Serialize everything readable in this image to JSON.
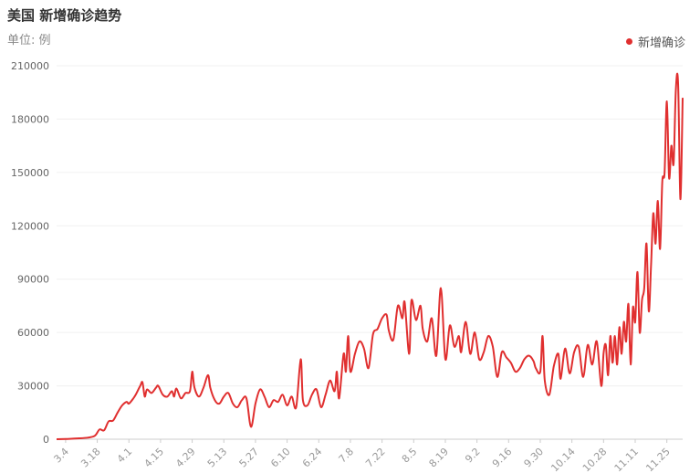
{
  "header": {
    "title": "美国 新增确诊趋势",
    "unit": "单位: 例"
  },
  "legend": {
    "label": "新增确诊",
    "color": "#e02f2f"
  },
  "chart_data": {
    "type": "line",
    "title": "美国 新增确诊趋势",
    "ylabel": "",
    "xlabel": "",
    "ylim": [
      0,
      210000
    ],
    "yticks": [
      0,
      30000,
      60000,
      90000,
      120000,
      150000,
      180000,
      210000
    ],
    "grid": true,
    "legend_position": "top-right",
    "xticks": [
      "3.4",
      "3.18",
      "4.1",
      "4.15",
      "4.29",
      "5.13",
      "5.27",
      "6.10",
      "6.24",
      "7.8",
      "7.22",
      "8.5",
      "8.19",
      "9.2",
      "9.16",
      "9.30",
      "10.14",
      "10.28",
      "11.11",
      "11.25"
    ],
    "series": [
      {
        "name": "新增确诊",
        "color": "#e02f2f",
        "points": [
          [
            "2.29",
            0
          ],
          [
            "3.4",
            100
          ],
          [
            "3.10",
            500
          ],
          [
            "3.14",
            900
          ],
          [
            "3.17",
            2000
          ],
          [
            "3.19",
            5500
          ],
          [
            "3.21",
            5000
          ],
          [
            "3.23",
            10000
          ],
          [
            "3.25",
            10500
          ],
          [
            "3.27",
            15000
          ],
          [
            "3.29",
            19000
          ],
          [
            "3.31",
            21000
          ],
          [
            "4.1",
            20000
          ],
          [
            "4.3",
            23000
          ],
          [
            "4.4",
            25000
          ],
          [
            "4.6",
            30000
          ],
          [
            "4.7",
            32000
          ],
          [
            "4.8",
            24000
          ],
          [
            "4.9",
            28000
          ],
          [
            "4.11",
            26000
          ],
          [
            "4.13",
            29000
          ],
          [
            "4.14",
            30000
          ],
          [
            "4.16",
            25000
          ],
          [
            "4.18",
            24000
          ],
          [
            "4.20",
            27000
          ],
          [
            "4.21",
            24000
          ],
          [
            "4.22",
            28500
          ],
          [
            "4.24",
            23000
          ],
          [
            "4.26",
            26000
          ],
          [
            "4.28",
            27000
          ],
          [
            "4.29",
            38000
          ],
          [
            "4.30",
            29000
          ],
          [
            "5.2",
            24000
          ],
          [
            "5.4",
            29000
          ],
          [
            "5.6",
            36000
          ],
          [
            "5.7",
            29000
          ],
          [
            "5.9",
            22000
          ],
          [
            "5.11",
            20000
          ],
          [
            "5.13",
            24000
          ],
          [
            "5.15",
            26000
          ],
          [
            "5.17",
            20000
          ],
          [
            "5.19",
            18000
          ],
          [
            "5.21",
            22000
          ],
          [
            "5.23",
            23000
          ],
          [
            "5.25",
            7000
          ],
          [
            "5.27",
            20000
          ],
          [
            "5.29",
            28000
          ],
          [
            "5.31",
            24000
          ],
          [
            "6.2",
            18000
          ],
          [
            "6.4",
            22000
          ],
          [
            "6.6",
            21000
          ],
          [
            "6.8",
            25000
          ],
          [
            "6.10",
            19000
          ],
          [
            "6.12",
            24000
          ],
          [
            "6.14",
            18000
          ],
          [
            "6.16",
            45000
          ],
          [
            "6.17",
            22000
          ],
          [
            "6.19",
            19000
          ],
          [
            "6.21",
            25000
          ],
          [
            "6.23",
            28000
          ],
          [
            "6.25",
            18000
          ],
          [
            "6.27",
            25000
          ],
          [
            "6.29",
            33000
          ],
          [
            "7.1",
            27000
          ],
          [
            "7.2",
            38000
          ],
          [
            "7.3",
            23000
          ],
          [
            "7.5",
            48000
          ],
          [
            "7.6",
            38000
          ],
          [
            "7.7",
            58000
          ],
          [
            "7.8",
            38000
          ],
          [
            "7.10",
            48000
          ],
          [
            "7.12",
            55000
          ],
          [
            "7.14",
            51000
          ],
          [
            "7.16",
            40000
          ],
          [
            "7.18",
            59000
          ],
          [
            "7.20",
            62000
          ],
          [
            "7.22",
            68000
          ],
          [
            "7.24",
            70000
          ],
          [
            "7.25",
            61000
          ],
          [
            "7.27",
            56000
          ],
          [
            "7.29",
            75000
          ],
          [
            "7.31",
            68000
          ],
          [
            "8.1",
            77000
          ],
          [
            "8.3",
            48000
          ],
          [
            "8.4",
            78000
          ],
          [
            "8.6",
            67000
          ],
          [
            "8.8",
            75000
          ],
          [
            "8.9",
            62000
          ],
          [
            "8.11",
            55000
          ],
          [
            "8.13",
            68000
          ],
          [
            "8.15",
            47000
          ],
          [
            "8.17",
            85000
          ],
          [
            "8.19",
            45000
          ],
          [
            "8.21",
            64000
          ],
          [
            "8.23",
            52000
          ],
          [
            "8.25",
            58000
          ],
          [
            "8.26",
            49000
          ],
          [
            "8.28",
            66000
          ],
          [
            "8.30",
            48000
          ],
          [
            "9.1",
            60000
          ],
          [
            "9.3",
            45000
          ],
          [
            "9.5",
            49000
          ],
          [
            "9.7",
            58000
          ],
          [
            "9.9",
            52000
          ],
          [
            "9.11",
            35000
          ],
          [
            "9.13",
            49000
          ],
          [
            "9.15",
            46000
          ],
          [
            "9.17",
            43000
          ],
          [
            "9.19",
            38000
          ],
          [
            "9.21",
            40000
          ],
          [
            "9.23",
            45000
          ],
          [
            "9.25",
            47000
          ],
          [
            "9.27",
            44000
          ],
          [
            "9.28",
            40000
          ],
          [
            "9.30",
            38000
          ],
          [
            "10.1",
            58000
          ],
          [
            "10.2",
            33000
          ],
          [
            "10.4",
            25000
          ],
          [
            "10.6",
            41000
          ],
          [
            "10.8",
            48000
          ],
          [
            "10.9",
            34000
          ],
          [
            "10.11",
            51000
          ],
          [
            "10.13",
            37000
          ],
          [
            "10.15",
            49000
          ],
          [
            "10.17",
            52000
          ],
          [
            "10.19",
            35000
          ],
          [
            "10.21",
            53000
          ],
          [
            "10.23",
            42000
          ],
          [
            "10.25",
            55000
          ],
          [
            "10.27",
            30000
          ],
          [
            "10.28",
            48000
          ],
          [
            "10.29",
            53000
          ],
          [
            "10.30",
            36000
          ],
          [
            "10.31",
            58000
          ],
          [
            "11.1",
            43000
          ],
          [
            "11.2",
            58000
          ],
          [
            "11.3",
            42000
          ],
          [
            "11.4",
            63000
          ],
          [
            "11.5",
            48000
          ],
          [
            "11.6",
            66000
          ],
          [
            "11.7",
            55000
          ],
          [
            "11.8",
            76000
          ],
          [
            "11.9",
            42000
          ],
          [
            "11.10",
            74000
          ],
          [
            "11.11",
            66000
          ],
          [
            "11.12",
            94000
          ],
          [
            "11.13",
            60000
          ],
          [
            "11.14",
            78000
          ],
          [
            "11.15",
            85000
          ],
          [
            "11.16",
            110000
          ],
          [
            "11.17",
            72000
          ],
          [
            "11.18",
            97000
          ],
          [
            "11.19",
            127000
          ],
          [
            "11.20",
            110000
          ],
          [
            "11.21",
            134000
          ],
          [
            "11.22",
            107000
          ],
          [
            "11.23",
            145000
          ],
          [
            "11.24",
            150000
          ],
          [
            "11.25",
            190000
          ],
          [
            "11.26",
            147000
          ],
          [
            "11.27",
            165000
          ],
          [
            "11.28",
            155000
          ],
          [
            "11.29",
            197000
          ],
          [
            "11.30",
            200000
          ],
          [
            "12.1",
            135000
          ],
          [
            "12.2",
            192000
          ]
        ]
      }
    ]
  }
}
